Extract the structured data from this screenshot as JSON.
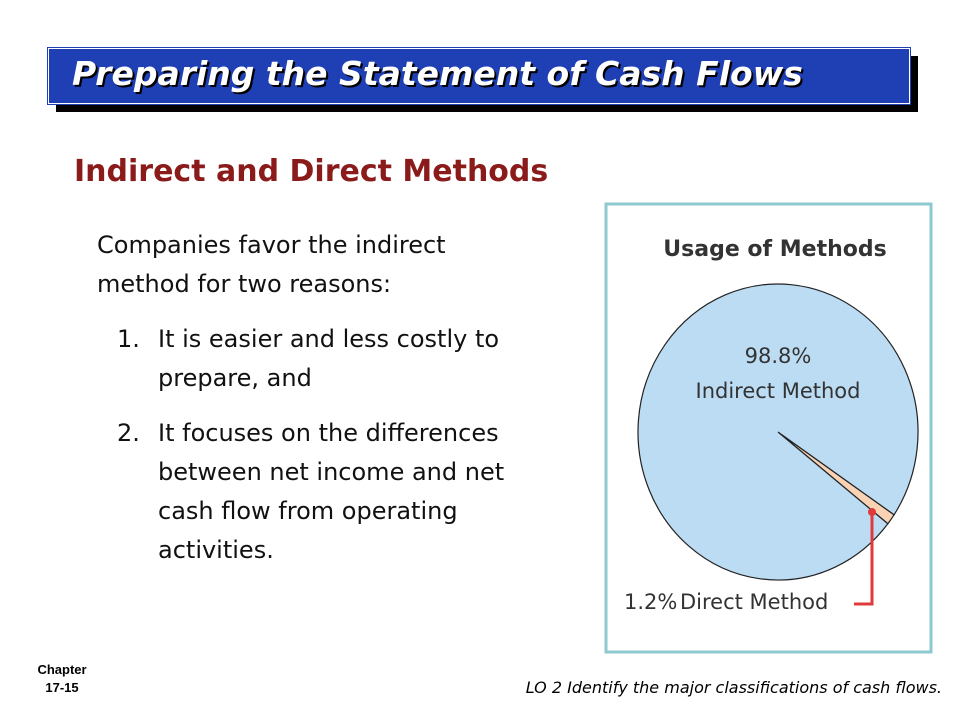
{
  "header": {
    "title": "Preparing the Statement of Cash Flows"
  },
  "subtitle": "Indirect and Direct Methods",
  "body": {
    "intro": "Companies favor the indirect method for two reasons:",
    "items": [
      {
        "number": "1.",
        "text": "It is easier and less costly to prepare, and"
      },
      {
        "number": "2.",
        "text": "It focuses on the differences between net income and net cash flow from operating activities."
      }
    ]
  },
  "footer": {
    "chapter": "Chapter",
    "page": "17-15",
    "objective": "LO 2 Identify the major classifications of cash flows."
  },
  "chart_data": {
    "type": "pie",
    "title": "Usage of Methods",
    "categories": [
      "Indirect Method",
      "Direct Method"
    ],
    "values": [
      98.8,
      1.2
    ],
    "value_labels": [
      "98.8%",
      "1.2%"
    ],
    "colors": [
      "#bcdcf4",
      "#f9d3b4"
    ]
  }
}
